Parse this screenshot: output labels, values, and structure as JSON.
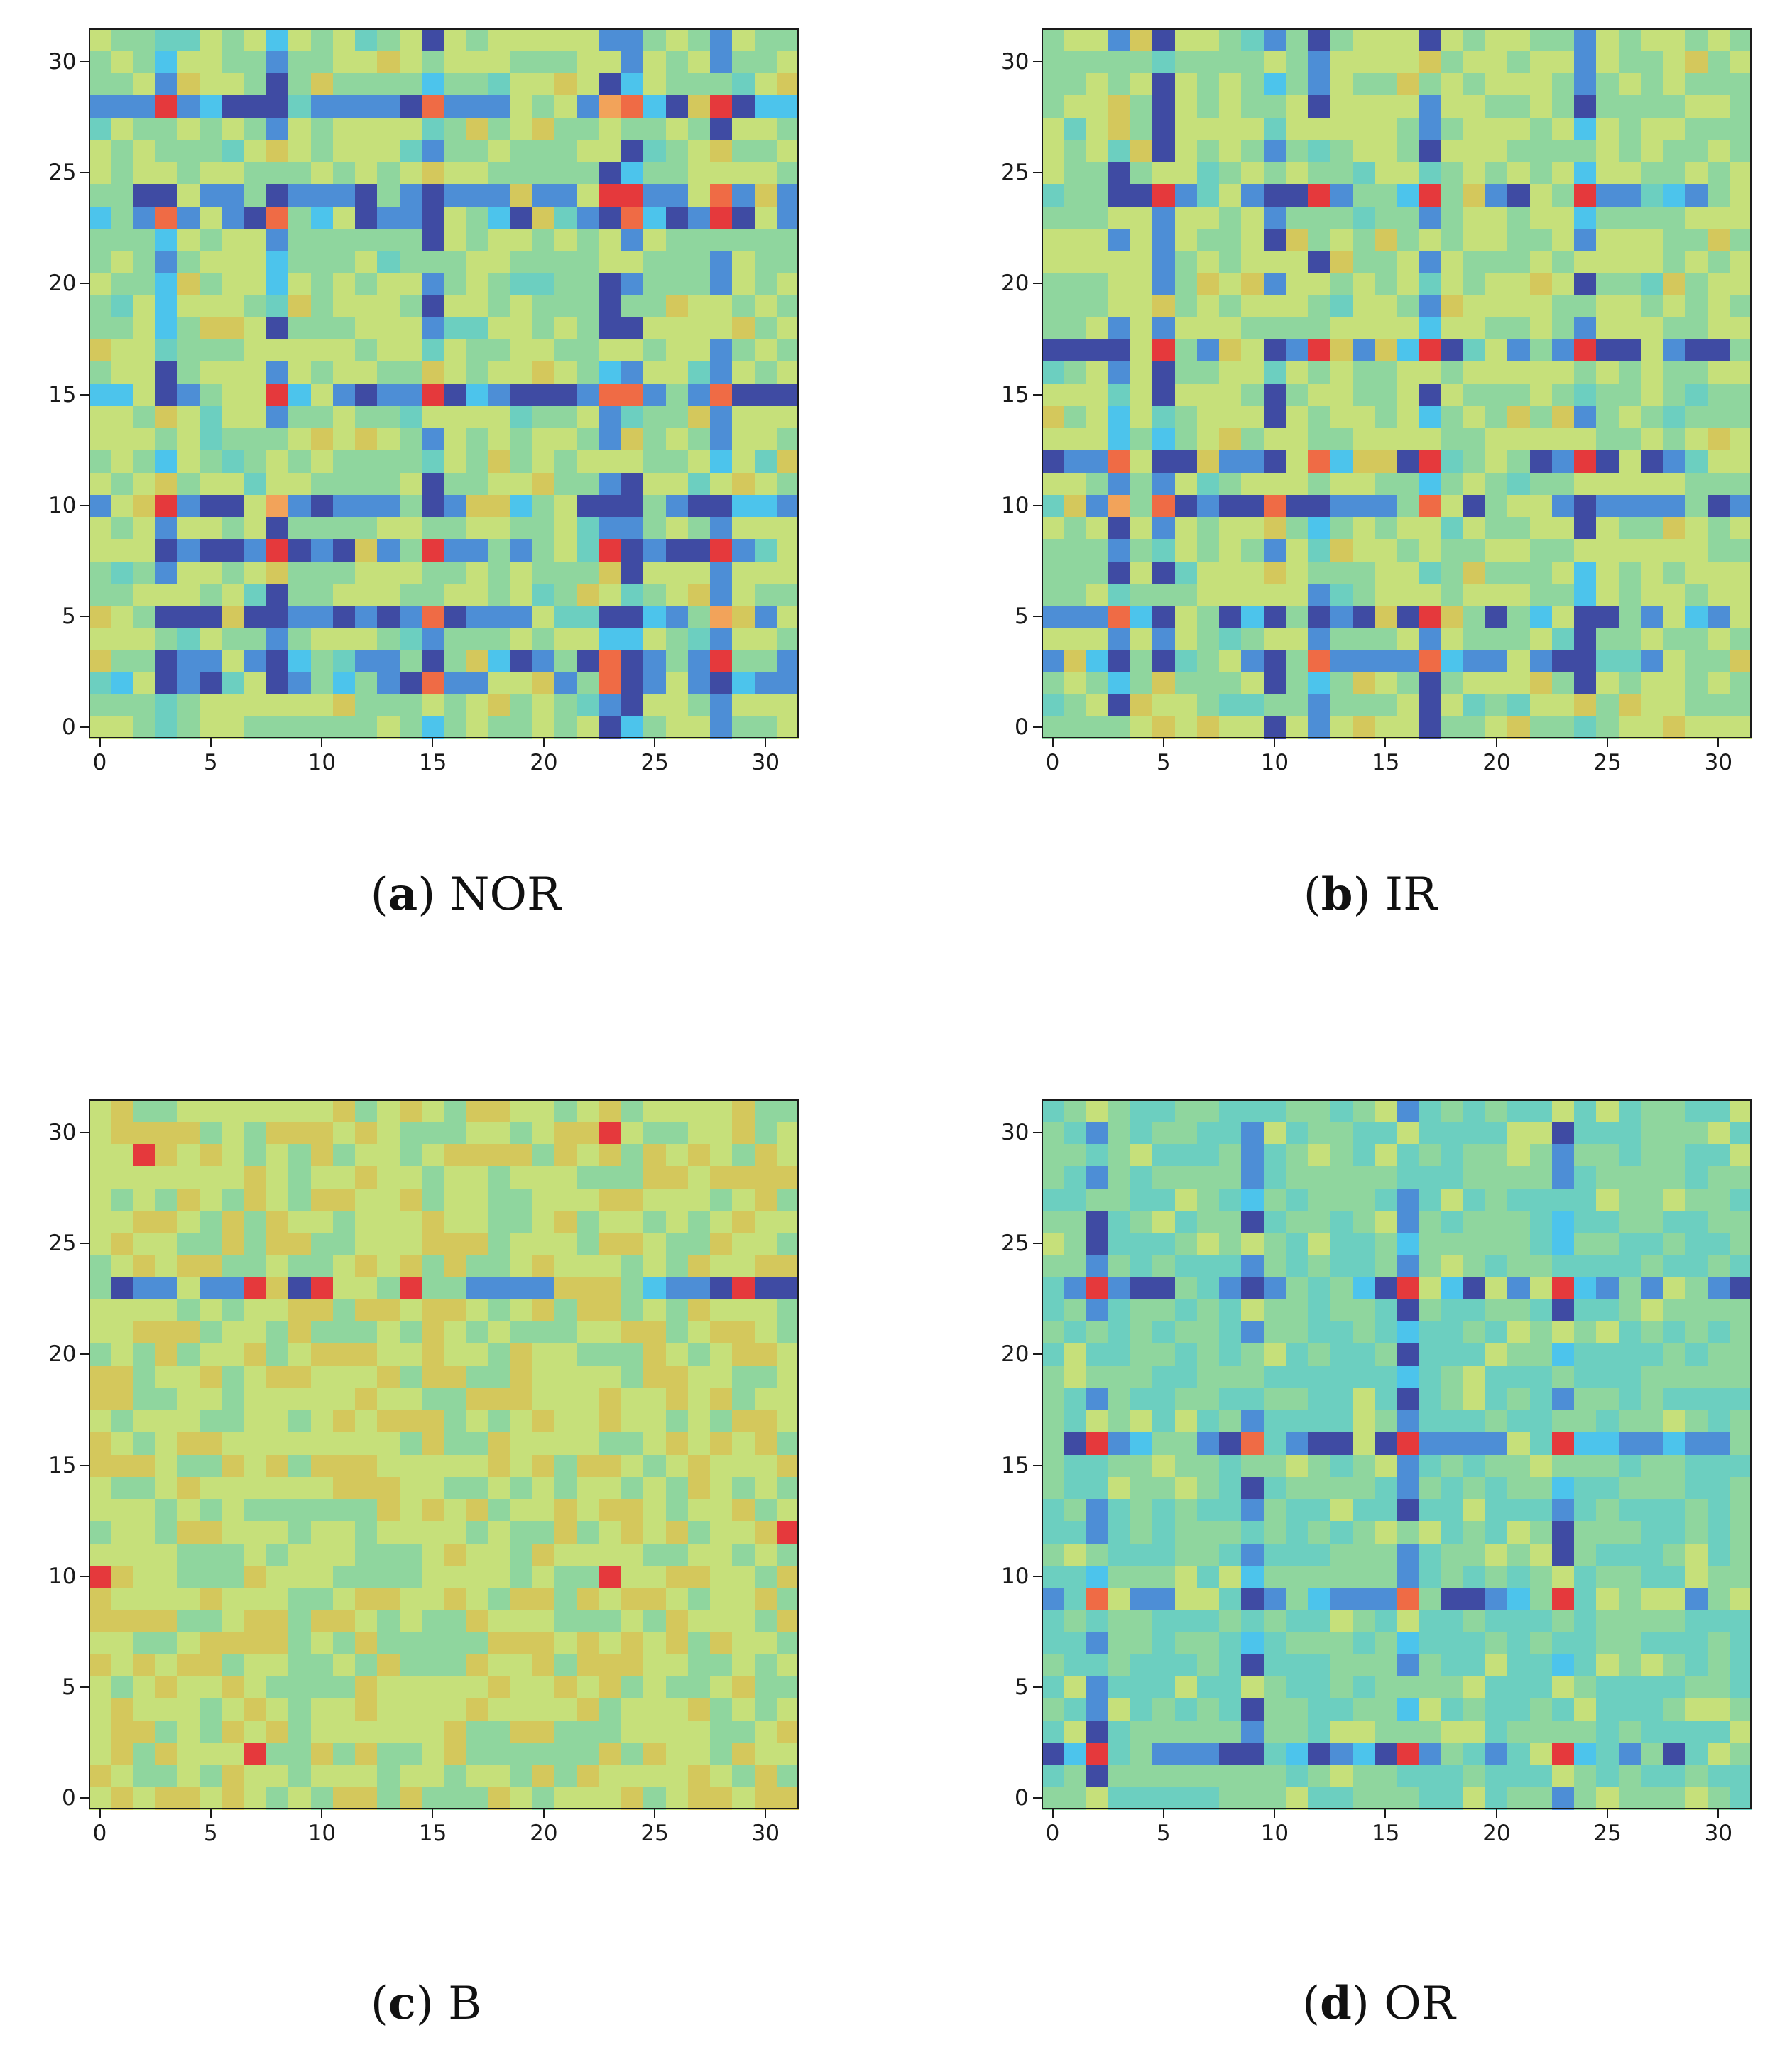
{
  "colors": {
    "scale": [
      "#3f4ba3",
      "#4d8ed6",
      "#4cc4ec",
      "#6ccfc0",
      "#8fd69e",
      "#c6e07a",
      "#d4c85c",
      "#f2a35a",
      "#ef6b45",
      "#e5393c"
    ]
  },
  "chart_data": [
    {
      "type": "heatmap",
      "label": "a",
      "name": "NOR",
      "size": 32,
      "xlim": [
        -0.5,
        31.5
      ],
      "ylim": [
        -0.5,
        31.5
      ],
      "xticks": [
        "0",
        "5",
        "10",
        "15",
        "20",
        "25",
        "30"
      ],
      "yticks": [
        "0",
        "5",
        "10",
        "15",
        "20",
        "25",
        "30"
      ],
      "rows": [
        24,
        23,
        15,
        10,
        8,
        5,
        3,
        2,
        28
      ],
      "cols": [
        3,
        8,
        15,
        23,
        24,
        28
      ],
      "diag_hot": [
        [
          8,
          8
        ],
        [
          24,
          24
        ],
        [
          15,
          15
        ],
        [
          28,
          28
        ],
        [
          8,
          15
        ],
        [
          15,
          8
        ],
        [
          28,
          3
        ],
        [
          3,
          28
        ],
        [
          8,
          28
        ],
        [
          24,
          23
        ]
      ],
      "bias": 0.5
    },
    {
      "type": "heatmap",
      "label": "b",
      "name": "IR",
      "size": 32,
      "xlim": [
        -0.5,
        31.5
      ],
      "ylim": [
        -0.5,
        31.5
      ],
      "xticks": [
        "0",
        "5",
        "10",
        "15",
        "20",
        "25",
        "30"
      ],
      "yticks": [
        "0",
        "5",
        "10",
        "15",
        "20",
        "25",
        "30"
      ],
      "rows": [
        24,
        17,
        12,
        10,
        5,
        3
      ],
      "cols": [
        3,
        5,
        10,
        12,
        17,
        24
      ],
      "diag_hot": [
        [
          17,
          24
        ],
        [
          17,
          17
        ],
        [
          24,
          17
        ],
        [
          24,
          24
        ],
        [
          17,
          12
        ],
        [
          12,
          17
        ],
        [
          24,
          12
        ],
        [
          12,
          24
        ],
        [
          17,
          5
        ],
        [
          5,
          17
        ]
      ],
      "bias": 0.5
    },
    {
      "type": "heatmap",
      "label": "c",
      "name": "B",
      "size": 32,
      "xlim": [
        -0.5,
        31.5
      ],
      "ylim": [
        -0.5,
        31.5
      ],
      "xticks": [
        "0",
        "5",
        "10",
        "15",
        "20",
        "25",
        "30"
      ],
      "yticks": [
        "0",
        "5",
        "10",
        "15",
        "20",
        "25",
        "30"
      ],
      "rows": [
        23
      ],
      "cols": [],
      "diag_hot": [
        [
          23,
          7
        ],
        [
          23,
          10
        ],
        [
          23,
          29
        ],
        [
          23,
          14
        ],
        [
          29,
          2
        ],
        [
          30,
          23
        ],
        [
          10,
          23
        ],
        [
          12,
          31
        ],
        [
          2,
          7
        ],
        [
          10,
          0
        ]
      ],
      "bias": 0.55
    },
    {
      "type": "heatmap",
      "label": "d",
      "name": "OR",
      "size": 32,
      "xlim": [
        -0.5,
        31.5
      ],
      "ylim": [
        -0.5,
        31.5
      ],
      "xticks": [
        "0",
        "5",
        "10",
        "15",
        "20",
        "25",
        "30"
      ],
      "yticks": [
        "0",
        "5",
        "10",
        "15",
        "20",
        "25",
        "30"
      ],
      "rows": [
        23,
        16,
        9,
        2
      ],
      "cols": [
        2,
        9,
        16,
        23
      ],
      "diag_hot": [
        [
          23,
          2
        ],
        [
          23,
          16
        ],
        [
          23,
          23
        ],
        [
          16,
          23
        ],
        [
          16,
          16
        ],
        [
          2,
          2
        ],
        [
          2,
          16
        ],
        [
          2,
          23
        ],
        [
          16,
          2
        ],
        [
          9,
          23
        ]
      ],
      "bias": 0.42
    }
  ],
  "captions": [
    {
      "letter": "a",
      "open": "(",
      "close": ")",
      "name": "NOR"
    },
    {
      "letter": "b",
      "open": "(",
      "close": ")",
      "name": "IR"
    },
    {
      "letter": "c",
      "open": "(",
      "close": ")",
      "name": "B"
    },
    {
      "letter": "d",
      "open": "(",
      "close": ")",
      "name": "OR"
    }
  ]
}
